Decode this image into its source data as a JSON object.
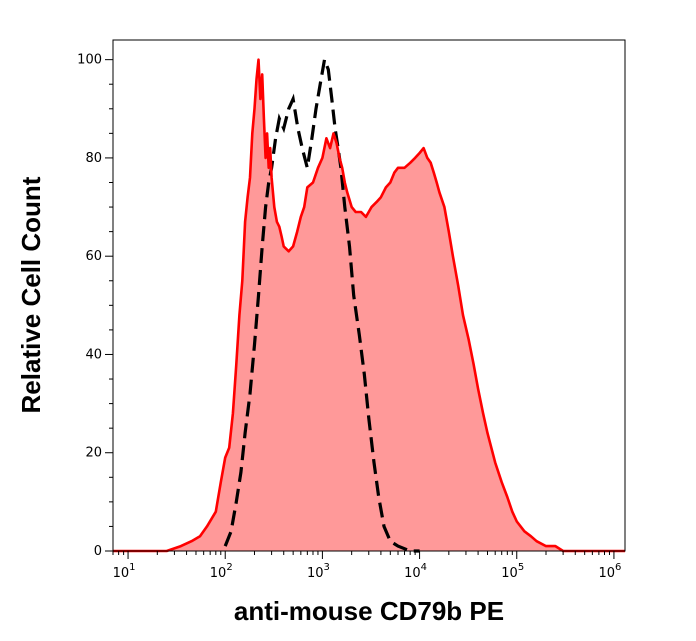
{
  "chart_data": {
    "type": "area",
    "title": "",
    "xlabel": "anti-mouse CD79b PE",
    "ylabel": "Relative Cell Count",
    "xscale": "log",
    "xlim": [
      7,
      1300000
    ],
    "ylim": [
      0,
      104
    ],
    "grid": false,
    "legend": "none",
    "y_ticks": [
      {
        "value": 0,
        "label": "0"
      },
      {
        "value": 20,
        "label": "20"
      },
      {
        "value": 40,
        "label": "40"
      },
      {
        "value": 60,
        "label": "60"
      },
      {
        "value": 80,
        "label": "80"
      },
      {
        "value": 100,
        "label": "100"
      }
    ],
    "x_ticks": [
      {
        "value": 10,
        "base": "10",
        "exp": "1"
      },
      {
        "value": 100,
        "base": "10",
        "exp": "2"
      },
      {
        "value": 1000,
        "base": "10",
        "exp": "3"
      },
      {
        "value": 10000,
        "base": "10",
        "exp": "4"
      },
      {
        "value": 100000,
        "base": "10",
        "exp": "5"
      },
      {
        "value": 1000000,
        "base": "10",
        "exp": "6"
      }
    ],
    "series": [
      {
        "style": "filled-solid",
        "color": "#ff0000",
        "fill": "#ff9999",
        "x": [
          7,
          15,
          25,
          35,
          45,
          55,
          65,
          80,
          90,
          100,
          110,
          120,
          130,
          140,
          150,
          160,
          170,
          180,
          190,
          200,
          210,
          220,
          230,
          240,
          250,
          260,
          270,
          280,
          290,
          300,
          320,
          340,
          360,
          380,
          400,
          450,
          500,
          550,
          600,
          650,
          700,
          800,
          900,
          1000,
          1100,
          1200,
          1300,
          1400,
          1500,
          1600,
          1700,
          1800,
          2000,
          2200,
          2500,
          2800,
          3200,
          3600,
          4000,
          4500,
          5000,
          5500,
          6000,
          7000,
          8000,
          9000,
          10000,
          11000,
          12000,
          13000,
          14000,
          15000,
          16000,
          18000,
          20000,
          22000,
          25000,
          28000,
          32000,
          36000,
          40000,
          45000,
          50000,
          60000,
          70000,
          80000,
          90000,
          100000,
          120000,
          140000,
          160000,
          200000,
          250000,
          300000,
          400000,
          600000,
          800000,
          1000000,
          1300000
        ],
        "y": [
          0,
          0,
          0,
          1,
          2,
          3,
          5,
          8,
          14,
          19,
          21,
          28,
          38,
          48,
          55,
          67,
          72,
          76,
          85,
          90,
          96,
          100,
          92,
          97,
          88,
          80,
          85,
          78,
          82,
          76,
          70,
          67,
          66,
          64,
          62,
          61,
          62,
          65,
          68,
          70,
          74,
          75,
          78,
          80,
          84,
          82,
          85,
          83,
          80,
          78,
          75,
          73,
          70,
          69,
          69,
          68,
          70,
          71,
          72,
          74,
          75,
          77,
          78,
          78,
          79,
          80,
          81,
          82,
          80,
          79,
          77,
          75,
          73,
          70,
          65,
          60,
          54,
          48,
          43,
          38,
          33,
          28,
          24,
          18,
          14,
          11,
          8,
          6,
          4,
          3,
          2,
          1,
          1,
          0,
          0,
          0,
          0,
          0,
          0
        ]
      },
      {
        "style": "dashed",
        "color": "#000000",
        "x": [
          100,
          115,
          130,
          145,
          160,
          180,
          200,
          220,
          240,
          260,
          280,
          300,
          330,
          360,
          400,
          450,
          500,
          560,
          620,
          700,
          780,
          860,
          950,
          1050,
          1150,
          1250,
          1350,
          1450,
          1550,
          1700,
          1900,
          2100,
          2400,
          2700,
          3000,
          3400,
          3800,
          4300,
          5000,
          6000,
          8000,
          10000
        ],
        "y": [
          1,
          4,
          10,
          16,
          24,
          32,
          42,
          52,
          62,
          70,
          75,
          78,
          84,
          88,
          86,
          90,
          92,
          86,
          82,
          78,
          84,
          90,
          95,
          100,
          98,
          92,
          86,
          82,
          78,
          70,
          62,
          52,
          44,
          36,
          27,
          18,
          11,
          5,
          2,
          1,
          0,
          0
        ]
      }
    ]
  }
}
